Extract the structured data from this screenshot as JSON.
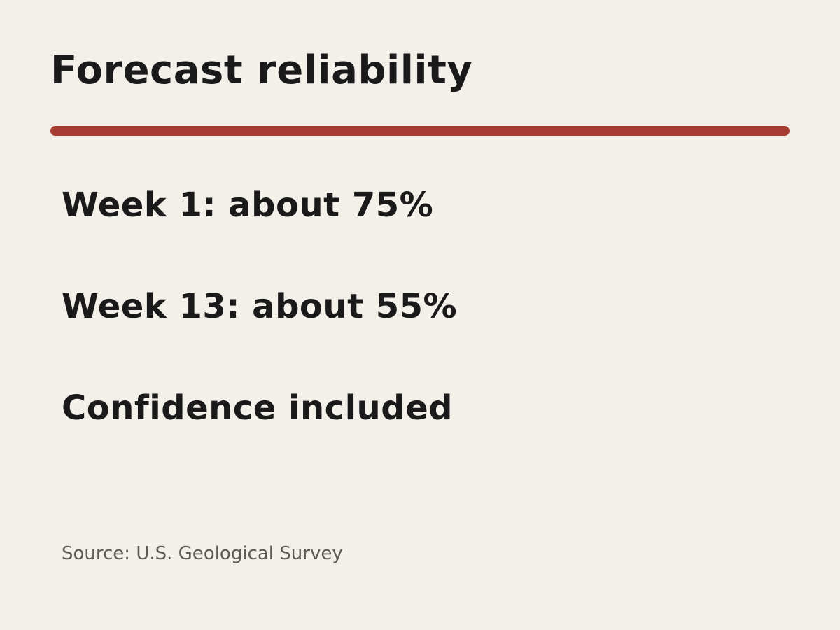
{
  "slide": {
    "title": "Forecast reliability",
    "accent_color": "#a63c32",
    "background_color": "#f3efe9",
    "bullets": [
      "Week 1: about 75%",
      "Week 13: about 55%",
      "Confidence included"
    ],
    "source": "Source: U.S. Geological Survey"
  }
}
